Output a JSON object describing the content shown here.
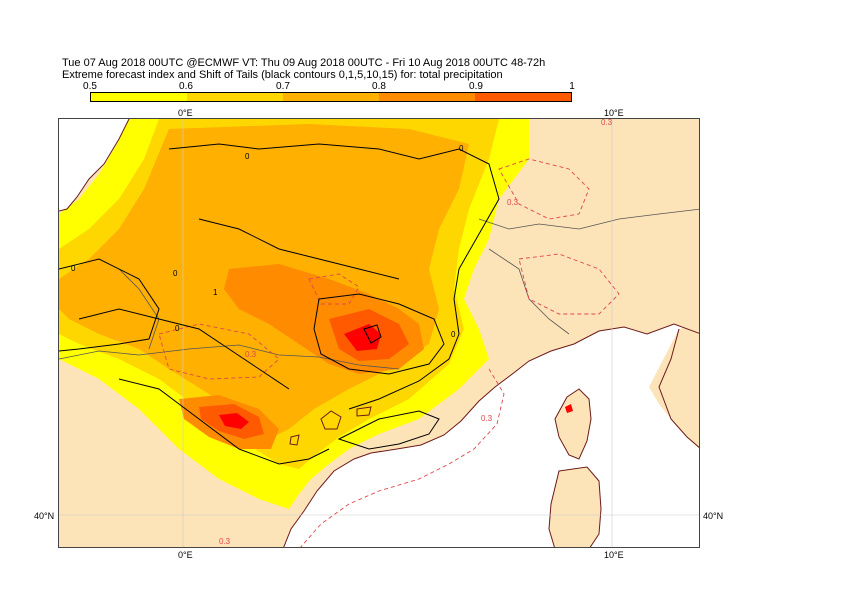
{
  "title_line1": "Tue 07 Aug 2018 00UTC @ECMWF VT: Thu 09 Aug 2018 00UTC - Fri 10 Aug 2018 00UTC  48-72h",
  "title_line2": "Extreme forecast index and Shift of Tails (black contours 0,1,5,10,15) for: total precipitation",
  "colorbar": {
    "ticks": [
      "0.5",
      "0.6",
      "0.7",
      "0.8",
      "0.9",
      "1"
    ],
    "colors": [
      "#ffff00",
      "#ffd700",
      "#ffb000",
      "#ff8c00",
      "#ff5a00",
      "#ff0000"
    ]
  },
  "axes": {
    "top": [
      "0°E",
      "10°E"
    ],
    "bottom": [
      "0°E",
      "10°E"
    ],
    "left": [
      "40°N"
    ],
    "right": [
      "40°N"
    ]
  },
  "contour_labels": {
    "black": [
      "0",
      "0",
      "0",
      "0",
      "1",
      "0",
      "0"
    ],
    "red": [
      "0.3",
      "0.3",
      "0.3",
      "0.3",
      "0.3"
    ]
  },
  "colors": {
    "land": "#fde3b8",
    "sea": "#ffffff",
    "coast": "#6b1a1a",
    "border": "#555555",
    "sot_contour": "#000000",
    "efi_neg_contour": "#e0474c"
  }
}
